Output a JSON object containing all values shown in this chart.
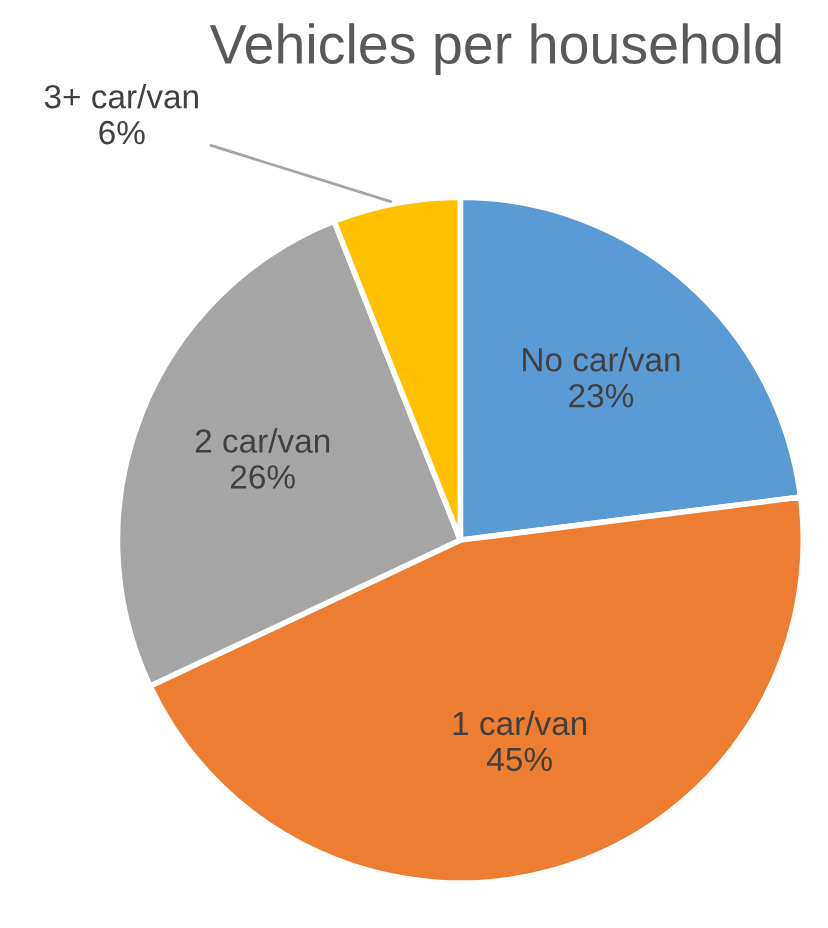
{
  "chart_data": {
    "type": "pie",
    "title": "Vehicles per household",
    "categories": [
      "No car/van",
      "1 car/van",
      "2 car/van",
      "3+ car/van"
    ],
    "values": [
      23,
      45,
      26,
      6
    ],
    "value_labels": [
      "23%",
      "45%",
      "26%",
      "6%"
    ],
    "colors": [
      "#5b9bd5",
      "#ed7d31",
      "#a5a5a5",
      "#ffc000"
    ],
    "legend": false
  }
}
